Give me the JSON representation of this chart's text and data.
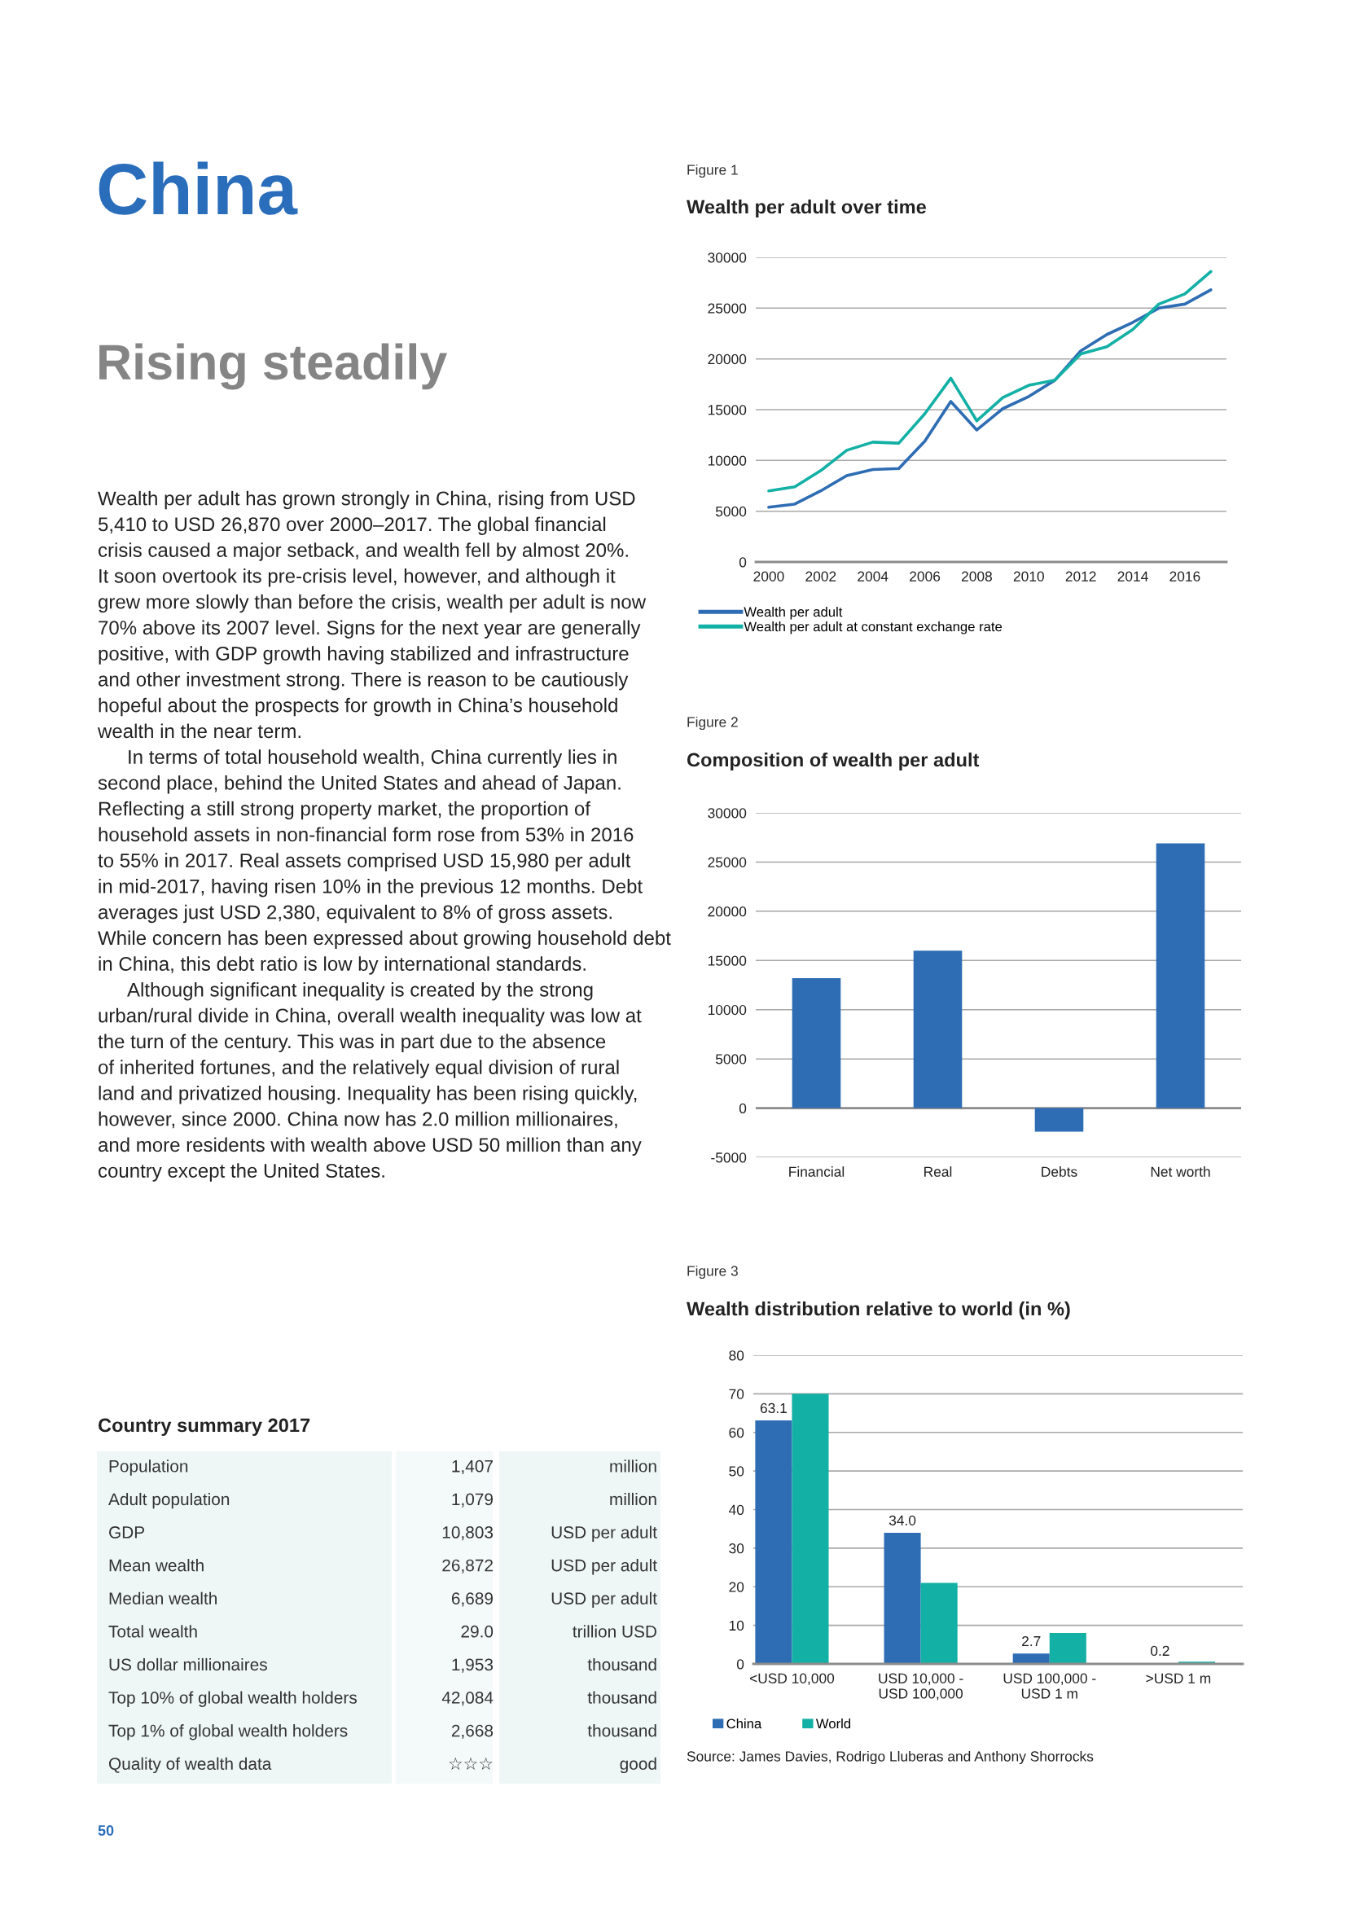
{
  "chart_data": [
    {
      "type": "other",
      "title": "China",
      "subtitle": "Rising steadily",
      "annotations": [
        "Wealth per adult has grown strongly in China, rising from USD\n5,410 to USD 26,870 over 2000–2017. The global financial\ncrisis caused a major setback, and wealth fell by almost 20%.\nIt soon overtook its pre-crisis level, however, and although it\ngrew more slowly than before the crisis, wealth per adult is now\n70% above its 2007 level. Signs for the next year are generally\npositive, with GDP growth having stabilized and infrastructure\nand other investment strong. There is reason to be cautiously\nhopeful about the prospects for growth in China’s household\nwealth in the near term.",
        "In terms of total household wealth, China currently lies in\nsecond place, behind the United States and ahead of Japan.\nReflecting a still strong property market, the proportion of\nhousehold assets in non-financial form rose from 53% in 2016\nto 55% in 2017. Real assets comprised USD 15,980 per adult\nin mid-2017, having risen 10% in the previous 12 months. Debt\naverages just USD 2,380, equivalent to 8% of gross assets.\nWhile concern has been expressed about growing household debt\nin China, this debt ratio is low by international standards.",
        "Although significant inequality is created by the strong\nurban/rural divide in China, overall wealth inequality was low at\nthe turn of the century. This was in part due to the absence\nof inherited fortunes, and the relatively equal division of rural\nland and privatized housing. Inequality has been rising quickly,\nhowever, since 2000. China now has 2.0 million millionaires,\nand more residents with wealth above USD 50 million than any\ncountry except the United States."
      ]
    },
    {
      "type": "line",
      "subtitle": "Figure 1",
      "title": "Wealth per adult over time",
      "x": [
        2000,
        2001,
        2002,
        2003,
        2004,
        2005,
        2006,
        2007,
        2008,
        2009,
        2010,
        2011,
        2012,
        2013,
        2014,
        2015,
        2016,
        2017
      ],
      "series": [
        {
          "name": "Wealth per adult",
          "color": "#2e6db4",
          "values": [
            5400,
            5700,
            7000,
            8500,
            9100,
            9200,
            11900,
            15800,
            13000,
            15100,
            16300,
            17900,
            20800,
            22400,
            23600,
            25000,
            25400,
            26800
          ]
        },
        {
          "name": "Wealth per adult at constant exchange rate",
          "color": "#13b0a5",
          "values": [
            7000,
            7400,
            9000,
            11000,
            11800,
            11700,
            14600,
            18100,
            13900,
            16200,
            17400,
            17900,
            20500,
            21200,
            22900,
            25400,
            26400,
            28600
          ]
        }
      ],
      "xlim": [
        1999.5,
        2017.6
      ],
      "xticks": [
        2000,
        2002,
        2004,
        2006,
        2008,
        2010,
        2012,
        2014,
        2016
      ],
      "ylim": [
        0,
        30000
      ],
      "yticks": [
        0,
        5000,
        10000,
        15000,
        20000,
        25000,
        30000
      ],
      "grid": "y",
      "legend": "bottom"
    },
    {
      "type": "bar",
      "subtitle": "Figure 2",
      "title": "Composition of wealth per adult",
      "categories": [
        "Financial",
        "Real",
        "Debts",
        "Net worth"
      ],
      "values": [
        13200,
        16000,
        -2400,
        26900
      ],
      "color": "#2e6db4",
      "ylim": [
        -5000,
        30000
      ],
      "yticks": [
        -5000,
        0,
        5000,
        10000,
        15000,
        20000,
        25000,
        30000
      ],
      "grid": "y"
    },
    {
      "type": "bar",
      "subtitle": "Figure 3",
      "title": "Wealth distribution relative to world (in %)",
      "categories": [
        "<USD 10,000",
        "USD 10,000 -\nUSD 100,000",
        "USD 100,000 -\nUSD 1 m",
        ">USD 1 m"
      ],
      "series": [
        {
          "name": "China",
          "color": "#2e6db4",
          "values": [
            63.1,
            34.0,
            2.7,
            0.2
          ],
          "value_labels": [
            "63.1",
            "34.0",
            "2.7",
            "0.2"
          ]
        },
        {
          "name": "World",
          "color": "#13b0a5",
          "values": [
            70,
            21,
            8,
            0.6
          ]
        }
      ],
      "ylim": [
        0,
        80
      ],
      "yticks": [
        0,
        10,
        20,
        30,
        40,
        50,
        60,
        70,
        80
      ],
      "grid": "y",
      "legend": "bottom",
      "annotations": [
        "Source: James Davies, Rodrigo Lluberas and Anthony Shorrocks"
      ]
    },
    {
      "type": "other",
      "title": "Country summary 2017",
      "annotations": [
        "Population",
        "1,407",
        "million",
        "Adult population",
        "1,079",
        "million",
        "GDP",
        "10,803",
        "USD per adult",
        "Mean wealth",
        "26,872",
        "USD per adult",
        "Median wealth",
        "6,689",
        "USD per adult",
        "Total wealth",
        "29.0",
        "trillion USD",
        "US dollar millionaires",
        "1,953",
        "thousand",
        "Top 10% of global wealth holders",
        "42,084",
        "thousand",
        "Top 1% of global wealth holders",
        "2,668",
        "thousand",
        "Quality of wealth data",
        "☆☆☆",
        "good",
        "50"
      ]
    }
  ]
}
